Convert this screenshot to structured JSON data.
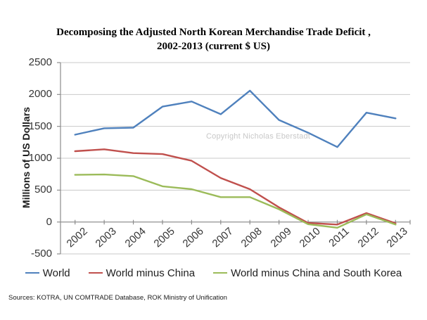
{
  "title": {
    "line1": "Decomposing the Adjusted North Korean Merchandise Trade Deficit ,",
    "line2": "2002-2013 (current $ US)"
  },
  "watermark": "Copyright Nicholas Eberstadt",
  "sources": "Sources: KOTRA, UN COMTRADE Database, ROK Ministry of Unification",
  "chart_data": {
    "type": "line",
    "title": "Decomposing the Adjusted North Korean Merchandise Trade Deficit , 2002-2013 (current $ US)",
    "ylabel": "Millions of US Dollars",
    "xlabel": "",
    "ylim": [
      -500,
      2500
    ],
    "yticks": [
      2500,
      2000,
      1500,
      1000,
      500,
      0,
      -500
    ],
    "grid": true,
    "legend_position": "bottom",
    "categories": [
      "2002",
      "2003",
      "2004",
      "2005",
      "2006",
      "2007",
      "2008",
      "2009",
      "2010",
      "2011",
      "2012",
      "2013"
    ],
    "series": [
      {
        "name": "World",
        "color": "#4F81BD",
        "values": [
          1370,
          1470,
          1480,
          1810,
          1890,
          1690,
          2060,
          1600,
          1400,
          1175,
          1715,
          1625
        ]
      },
      {
        "name": "World minus China",
        "color": "#C0504D",
        "values": [
          1110,
          1140,
          1080,
          1065,
          960,
          690,
          515,
          230,
          -15,
          -40,
          140,
          -20
        ]
      },
      {
        "name": "World minus China and South Korea",
        "color": "#9BBB59",
        "values": [
          740,
          745,
          720,
          560,
          515,
          390,
          390,
          200,
          -35,
          -90,
          120,
          -40
        ]
      }
    ]
  },
  "colors": {
    "background": "#FFFFFF",
    "gridline": "#C9C9C9",
    "axis": "#8C8C8C",
    "text": "#404040",
    "watermark": "#C8C8C8"
  }
}
